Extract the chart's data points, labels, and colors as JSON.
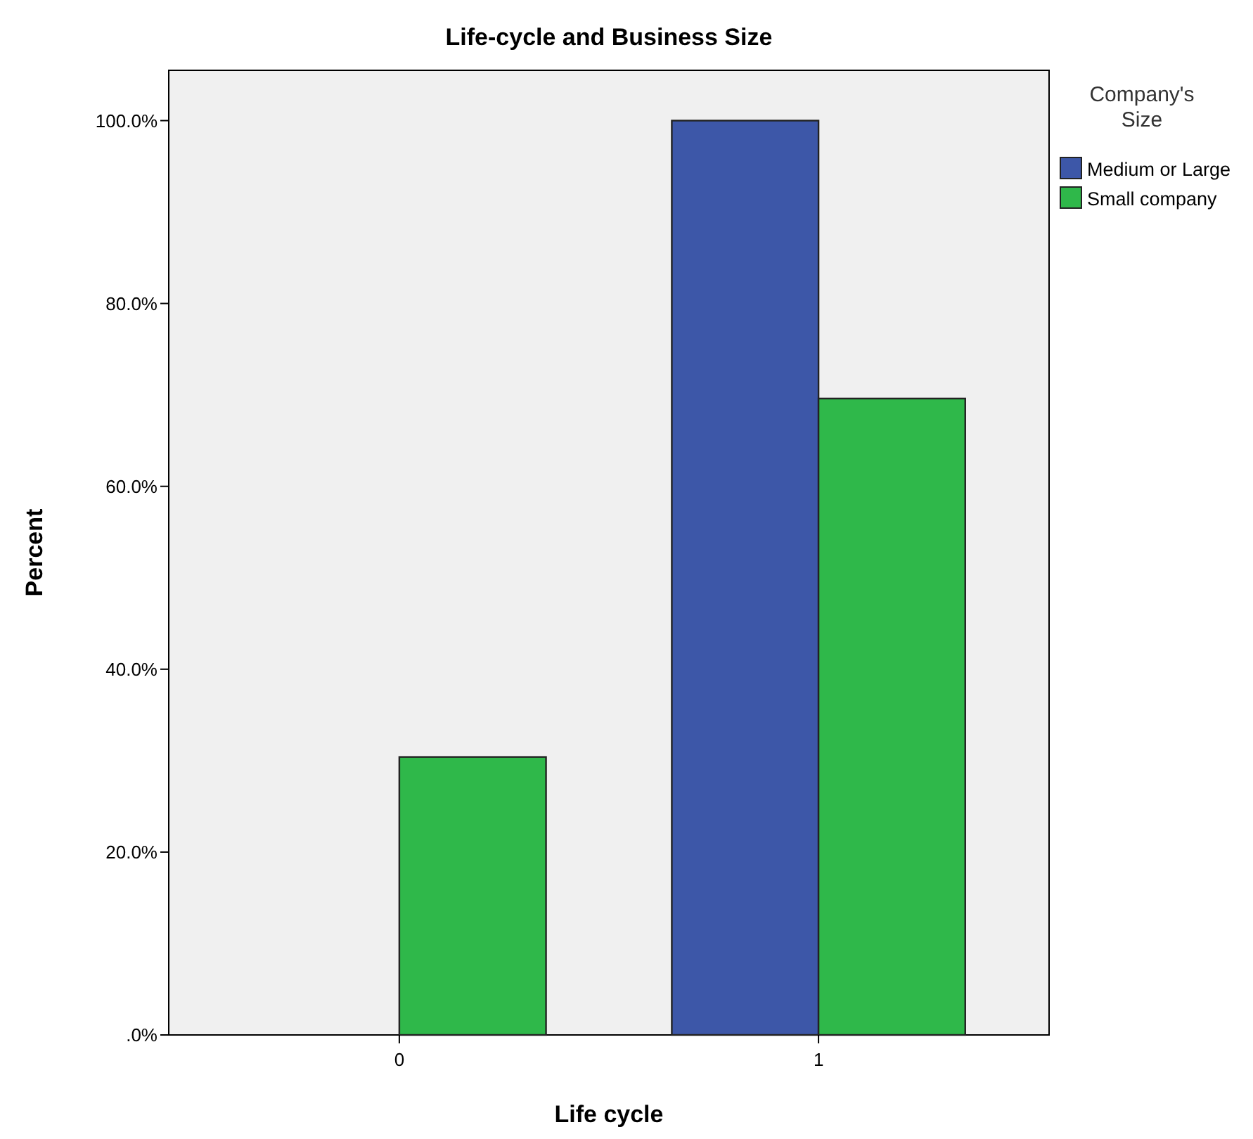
{
  "chart_data": {
    "type": "bar",
    "title": "Life-cycle and Business Size",
    "xlabel": "Life cycle",
    "ylabel": "Percent",
    "legend_title": "Company's Size",
    "categories": [
      "0",
      "1"
    ],
    "series": [
      {
        "name": "Medium or Large",
        "color": "#3d57a8",
        "values": [
          0,
          100
        ]
      },
      {
        "name": "Small company",
        "color": "#2fb84a",
        "values": [
          30.4,
          69.6
        ]
      }
    ],
    "ylim": [
      0,
      105.5
    ],
    "yticks": [
      {
        "value": 0,
        "label": ".0%"
      },
      {
        "value": 20,
        "label": "20.0%"
      },
      {
        "value": 40,
        "label": "40.0%"
      },
      {
        "value": 60,
        "label": "60.0%"
      },
      {
        "value": 80,
        "label": "80.0%"
      },
      {
        "value": 100,
        "label": "100.0%"
      }
    ],
    "legend": "top right",
    "grid": false
  }
}
